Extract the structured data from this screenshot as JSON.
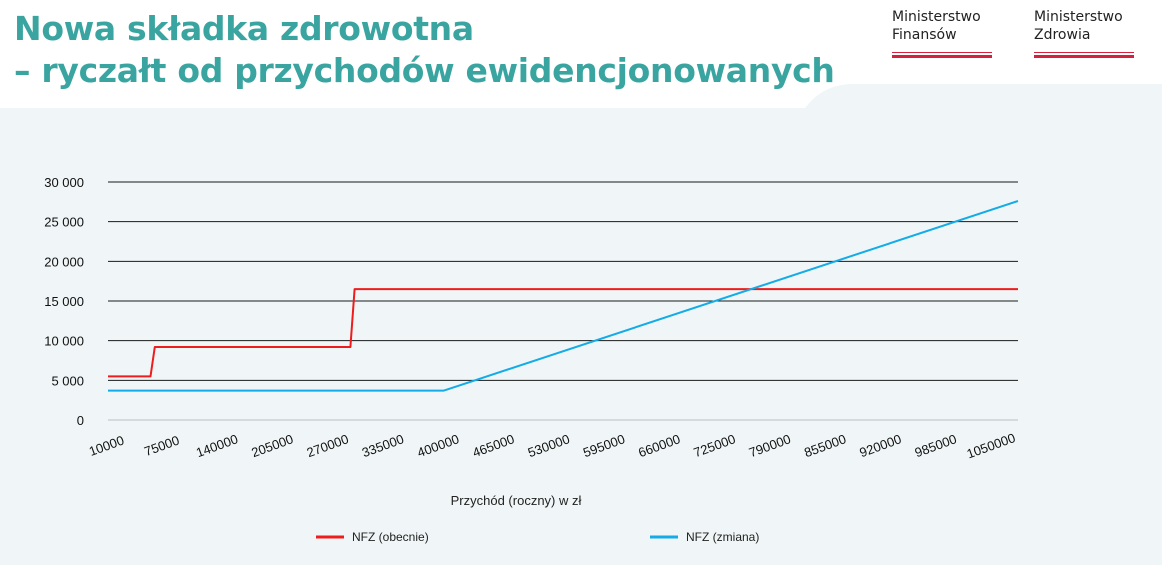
{
  "header": {
    "title_line1": "Nowa składka zdrowotna",
    "title_line2": "– ryczałt od przychodów ewidencjonowanych"
  },
  "logos": [
    {
      "line1": "Ministerstwo",
      "line2": "Finansów"
    },
    {
      "line1": "Ministerstwo",
      "line2": "Zdrowia"
    }
  ],
  "colors": {
    "title": "#3aa5a0",
    "panel": "#f0f6f7",
    "logo_bar": "#d4213d",
    "series_obecnie": "#ee1c1c",
    "series_zmiana": "#13abe8"
  },
  "chart_data": {
    "type": "line",
    "xlabel": "Przychód (roczny) w zł",
    "ylabel": "",
    "xlim": [
      10000,
      1080000
    ],
    "ylim": [
      0,
      30000
    ],
    "x_ticks": [
      10000,
      75000,
      140000,
      205000,
      270000,
      335000,
      400000,
      465000,
      530000,
      595000,
      660000,
      725000,
      790000,
      855000,
      920000,
      985000,
      1050000
    ],
    "x_tick_labels": [
      "10000",
      "75000",
      "140000",
      "205000",
      "270000",
      "335000",
      "400000",
      "465000",
      "530000",
      "595000",
      "660000",
      "725000",
      "790000",
      "855000",
      "920000",
      "985000",
      "1050000"
    ],
    "y_ticks": [
      0,
      5000,
      10000,
      15000,
      20000,
      25000,
      30000
    ],
    "y_tick_labels": [
      "0",
      "5 000",
      "10 000",
      "15 000",
      "20 000",
      "25 000",
      "30 000"
    ],
    "grid": "horizontal",
    "legend_position": "bottom",
    "series": [
      {
        "name": "NFZ (obecnie)",
        "color": "#ee1c1c",
        "x": [
          10000,
          60000,
          65000,
          295000,
          300000,
          1080000
        ],
        "y": [
          5500,
          5500,
          9200,
          9200,
          16500,
          16500
        ]
      },
      {
        "name": "NFZ (zmiana)",
        "color": "#13abe8",
        "x": [
          10000,
          405000,
          1080000
        ],
        "y": [
          3700,
          3700,
          27600
        ]
      }
    ]
  }
}
